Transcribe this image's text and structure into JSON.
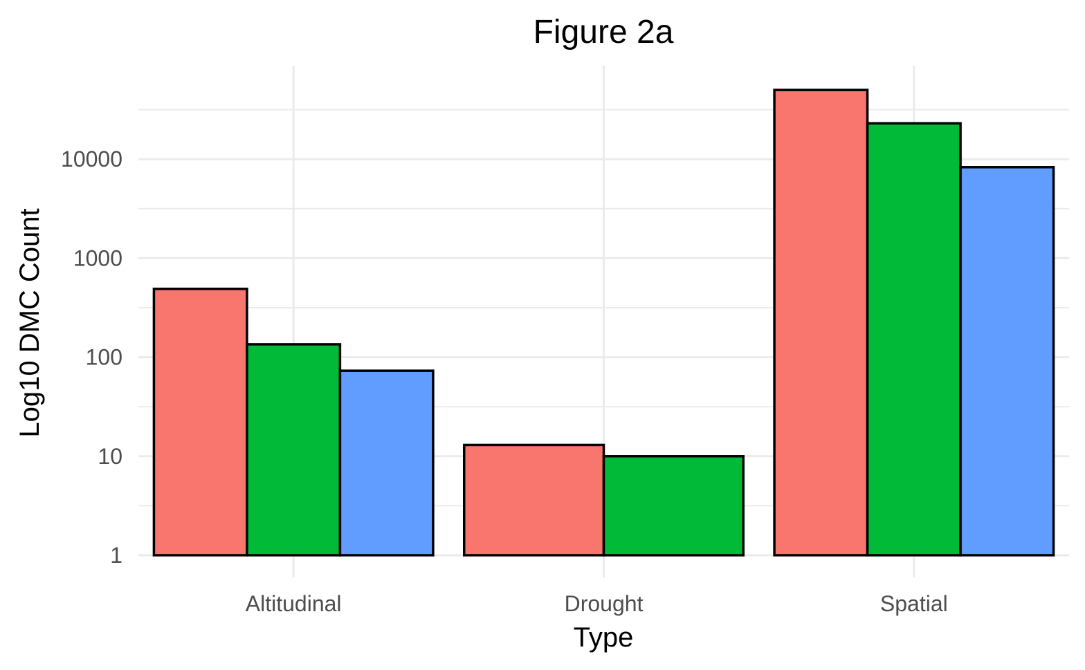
{
  "chart_data": {
    "type": "bar",
    "title": "Figure 2a",
    "xlabel": "Type",
    "ylabel": "Log10 DMC Count",
    "y_scale": "log10",
    "ylim": [
      1,
      80000
    ],
    "y_ticks": [
      1,
      10,
      100,
      1000,
      10000
    ],
    "y_tick_labels": [
      "1",
      "10",
      "100",
      "1000",
      "10000"
    ],
    "grid": true,
    "legend": "none",
    "categories": [
      "Altitudinal",
      "Drought",
      "Spatial"
    ],
    "series": [
      {
        "color": "#F8766D",
        "values": [
          490,
          13,
          50000
        ]
      },
      {
        "color": "#00BA38",
        "values": [
          135,
          10,
          23000
        ]
      },
      {
        "color": "#619CFF",
        "values": [
          73,
          null,
          8300
        ]
      }
    ]
  }
}
